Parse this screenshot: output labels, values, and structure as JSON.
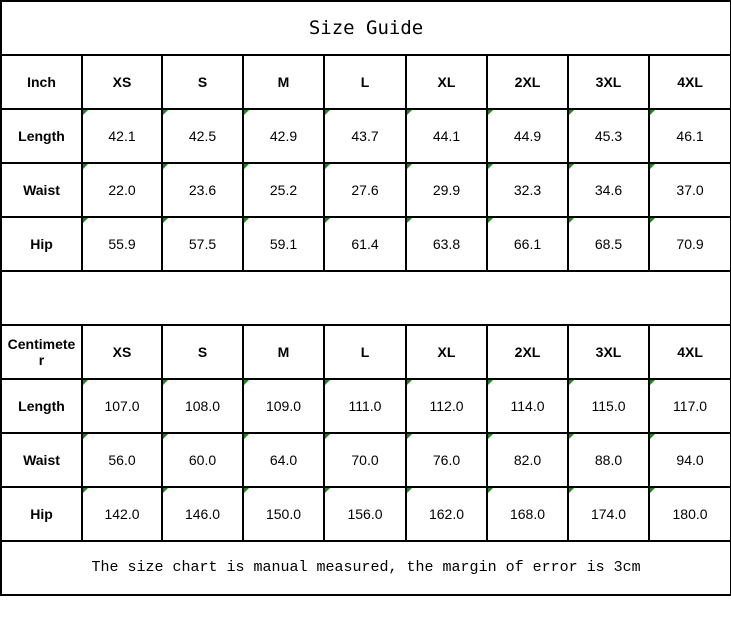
{
  "title": "Size Guide",
  "note": "The size chart is manual measured, the margin of error is 3cm",
  "sizes": [
    "XS",
    "S",
    "M",
    "L",
    "XL",
    "2XL",
    "3XL",
    "4XL"
  ],
  "inch": {
    "unit": "Inch",
    "rows": [
      {
        "label": "Length",
        "values": [
          "42.1",
          "42.5",
          "42.9",
          "43.7",
          "44.1",
          "44.9",
          "45.3",
          "46.1"
        ]
      },
      {
        "label": "Waist",
        "values": [
          "22.0",
          "23.6",
          "25.2",
          "27.6",
          "29.9",
          "32.3",
          "34.6",
          "37.0"
        ]
      },
      {
        "label": "Hip",
        "values": [
          "55.9",
          "57.5",
          "59.1",
          "61.4",
          "63.8",
          "66.1",
          "68.5",
          "70.9"
        ]
      }
    ]
  },
  "cm": {
    "unit": "Centimeter",
    "rows": [
      {
        "label": "Length",
        "values": [
          "107.0",
          "108.0",
          "109.0",
          "111.0",
          "112.0",
          "114.0",
          "115.0",
          "117.0"
        ]
      },
      {
        "label": "Waist",
        "values": [
          "56.0",
          "60.0",
          "64.0",
          "70.0",
          "76.0",
          "82.0",
          "88.0",
          "94.0"
        ]
      },
      {
        "label": "Hip",
        "values": [
          "142.0",
          "146.0",
          "150.0",
          "156.0",
          "162.0",
          "168.0",
          "174.0",
          "180.0"
        ]
      }
    ]
  }
}
